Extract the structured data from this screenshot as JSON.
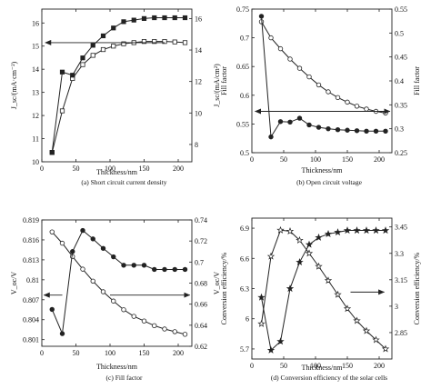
{
  "chart_data": [
    {
      "type": "line",
      "caption": "(a) Short circuit current density",
      "xlabel": "Thickness/nm",
      "xlim": [
        0,
        220
      ],
      "xticks": [
        0,
        50,
        100,
        150,
        200
      ],
      "ylabel_left": "J_sc/(mA·cm⁻²)",
      "ylim_left": [
        10,
        16.6
      ],
      "yticks_left": [
        10,
        11,
        12,
        13,
        14,
        15,
        16
      ],
      "ylabel_right": "J_sc/(mA/cm²)",
      "ylim_right": [
        6.9,
        16.6
      ],
      "yticks_right": [
        8,
        10,
        12,
        14,
        16
      ],
      "series": [
        {
          "axis": "left",
          "marker": "square-open",
          "x": [
            15,
            30,
            45,
            60,
            75,
            90,
            105,
            120,
            135,
            150,
            165,
            180,
            195,
            210
          ],
          "y": [
            10.4,
            12.2,
            13.6,
            14.2,
            14.6,
            14.85,
            15.0,
            15.1,
            15.15,
            15.2,
            15.2,
            15.2,
            15.18,
            15.15
          ]
        },
        {
          "axis": "right",
          "marker": "square-filled",
          "x": [
            15,
            30,
            45,
            60,
            75,
            90,
            105,
            120,
            135,
            150,
            165,
            180,
            195,
            210
          ],
          "y": [
            7.5,
            12.6,
            12.4,
            13.5,
            14.3,
            14.9,
            15.4,
            15.8,
            15.9,
            16.0,
            16.05,
            16.05,
            16.05,
            16.05
          ]
        }
      ]
    },
    {
      "type": "line",
      "caption": "(b) Open circuit voltage",
      "xlabel": "Thickness/nm",
      "xlim": [
        0,
        220
      ],
      "xticks": [
        0,
        50,
        100,
        150,
        200
      ],
      "ylabel_left": "Fill factor",
      "ylim_left": [
        0.5,
        0.75
      ],
      "yticks_left": [
        0.5,
        0.55,
        0.6,
        0.65,
        0.7,
        0.75
      ],
      "ylabel_right": "Fill factor",
      "ylim_right": [
        0.25,
        0.55
      ],
      "yticks_right": [
        0.25,
        0.3,
        0.35,
        0.4,
        0.45,
        0.5,
        0.55
      ],
      "series": [
        {
          "axis": "left",
          "marker": "circle-open",
          "x": [
            15,
            30,
            45,
            60,
            75,
            90,
            105,
            120,
            135,
            150,
            165,
            180,
            195,
            210
          ],
          "y": [
            0.728,
            0.7,
            0.681,
            0.663,
            0.647,
            0.632,
            0.618,
            0.606,
            0.596,
            0.588,
            0.581,
            0.576,
            0.572,
            0.569
          ]
        },
        {
          "axis": "right",
          "marker": "circle-filled",
          "x": [
            15,
            30,
            45,
            60,
            75,
            90,
            105,
            120,
            135,
            150,
            165,
            180,
            195,
            210
          ],
          "y": [
            0.535,
            0.283,
            0.315,
            0.314,
            0.322,
            0.308,
            0.303,
            0.3,
            0.298,
            0.297,
            0.296,
            0.295,
            0.295,
            0.295
          ]
        }
      ]
    },
    {
      "type": "line",
      "caption": "(c) Fill factor",
      "xlabel": "Thickness/nm",
      "xlim": [
        0,
        220
      ],
      "xticks": [
        0,
        50,
        100,
        150,
        200
      ],
      "ylabel_left": "V_oc/V",
      "ylim_left": [
        0.8,
        0.819
      ],
      "yticks_left": [
        0.801,
        0.804,
        0.807,
        0.81,
        0.813,
        0.816,
        0.819
      ],
      "ylabel_right": "V_oc/V",
      "ylim_right": [
        0.62,
        0.74
      ],
      "yticks_right": [
        0.62,
        0.64,
        0.66,
        0.68,
        0.7,
        0.72,
        0.74
      ],
      "series": [
        {
          "axis": "left",
          "marker": "circle-open",
          "x": [
            15,
            30,
            45,
            60,
            75,
            90,
            105,
            120,
            135,
            150,
            165,
            180,
            195,
            210
          ],
          "y": [
            0.8172,
            0.8155,
            0.8135,
            0.8116,
            0.8098,
            0.8082,
            0.8068,
            0.8055,
            0.8045,
            0.8038,
            0.8031,
            0.8026,
            0.8022,
            0.8018
          ]
        },
        {
          "axis": "right",
          "marker": "circle-filled",
          "x": [
            15,
            30,
            45,
            60,
            75,
            90,
            105,
            120,
            135,
            150,
            165,
            180,
            195,
            210
          ],
          "y": [
            0.655,
            0.632,
            0.71,
            0.73,
            0.722,
            0.713,
            0.705,
            0.697,
            0.697,
            0.697,
            0.693,
            0.693,
            0.693,
            0.693
          ]
        }
      ]
    },
    {
      "type": "line",
      "caption": "(d) Conversion efficiency of the solar cells",
      "xlabel": "Thickness/nm",
      "xlim": [
        0,
        220
      ],
      "xticks": [
        0,
        50,
        100,
        150,
        200
      ],
      "ylabel_left": "Conversion efficiency/%",
      "ylim_left": [
        5.6,
        7.0
      ],
      "yticks_left": [
        5.7,
        6.0,
        6.3,
        6.6,
        6.9
      ],
      "ylabel_right": "Conversion efficiency/%",
      "ylim_right": [
        2.7,
        3.5
      ],
      "yticks_right": [
        2.85,
        3.0,
        3.15,
        3.3,
        3.45
      ],
      "series": [
        {
          "axis": "left",
          "marker": "star-open",
          "x": [
            15,
            30,
            45,
            60,
            75,
            90,
            105,
            120,
            135,
            150,
            165,
            180,
            195,
            210
          ],
          "y": [
            5.95,
            6.62,
            6.88,
            6.87,
            6.78,
            6.65,
            6.52,
            6.38,
            6.24,
            6.1,
            5.98,
            5.88,
            5.79,
            5.7
          ]
        },
        {
          "axis": "right",
          "marker": "star-filled",
          "x": [
            15,
            30,
            45,
            60,
            75,
            90,
            105,
            120,
            135,
            150,
            165,
            180,
            195,
            210
          ],
          "y": [
            3.05,
            2.75,
            2.8,
            3.1,
            3.25,
            3.35,
            3.39,
            3.41,
            3.42,
            3.43,
            3.43,
            3.43,
            3.43,
            3.43
          ]
        }
      ]
    }
  ]
}
